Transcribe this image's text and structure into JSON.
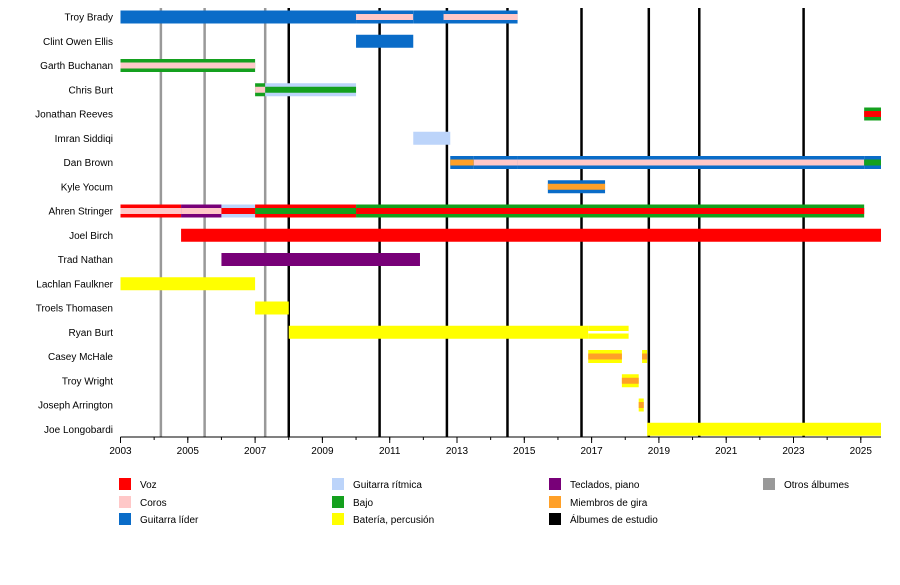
{
  "chart_data": {
    "type": "timeline",
    "title": "",
    "x_axis": {
      "start_year": 2003,
      "end_year": 2025.75,
      "tick_labels": [
        "2003",
        "2005",
        "2007",
        "2009",
        "2011",
        "2013",
        "2015",
        "2017",
        "2019",
        "2021",
        "2023",
        "2025"
      ]
    },
    "colors": {
      "voz": "#ff0000",
      "coros": "#ffc8c8",
      "guitarra_lider": "#0a6cc8",
      "guitarra_ritmica": "#bcd4fa",
      "bajo": "#14a01e",
      "bateria": "#ffff00",
      "teclados": "#780078",
      "gira": "#ffa028",
      "estudio": "#000000",
      "otros": "#999999"
    },
    "legend": [
      {
        "key": "voz",
        "label": "Voz"
      },
      {
        "key": "coros",
        "label": "Coros"
      },
      {
        "key": "guitarra_lider",
        "label": "Guitarra líder"
      },
      {
        "key": "guitarra_ritmica",
        "label": "Guitarra rítmica"
      },
      {
        "key": "bajo",
        "label": "Bajo"
      },
      {
        "key": "bateria",
        "label": "Batería, percusión"
      },
      {
        "key": "teclados",
        "label": "Teclados, piano"
      },
      {
        "key": "gira",
        "label": "Miembros de gira"
      },
      {
        "key": "estudio",
        "label": "Álbumes de estudio"
      },
      {
        "key": "otros",
        "label": "Otros álbumes"
      }
    ],
    "studio_albums": [
      2008.0,
      2010.7,
      2012.7,
      2014.5,
      2016.7,
      2018.7,
      2020.2,
      2023.3
    ],
    "other_albums": [
      2004.2,
      2005.5,
      2007.3
    ],
    "members": [
      {
        "name": "Troy Brady",
        "segments": [
          {
            "start": 2003.0,
            "end": 2010.0,
            "main": "guitarra_lider"
          },
          {
            "start": 2010.0,
            "end": 2011.7,
            "main": "guitarra_lider",
            "inner": "coros"
          },
          {
            "start": 2011.7,
            "end": 2012.6,
            "main": "guitarra_lider"
          },
          {
            "start": 2012.6,
            "end": 2014.8,
            "main": "guitarra_lider",
            "inner": "coros"
          }
        ]
      },
      {
        "name": "Clint Owen Ellis",
        "segments": [
          {
            "start": 2010.0,
            "end": 2011.7,
            "main": "guitarra_lider"
          }
        ]
      },
      {
        "name": "Garth Buchanan",
        "segments": [
          {
            "start": 2003.0,
            "end": 2007.0,
            "main": "bajo",
            "inner": "coros"
          }
        ]
      },
      {
        "name": "Chris Burt",
        "segments": [
          {
            "start": 2007.0,
            "end": 2007.3,
            "main": "bajo",
            "inner": "coros"
          },
          {
            "start": 2007.3,
            "end": 2010.0,
            "main": "guitarra_ritmica",
            "inner": "bajo"
          }
        ]
      },
      {
        "name": "Jonathan Reeves",
        "segments": [
          {
            "start": 2025.1,
            "end": 2025.6,
            "main": "bajo",
            "inner": "voz"
          }
        ]
      },
      {
        "name": "Imran Siddiqi",
        "segments": [
          {
            "start": 2011.7,
            "end": 2012.8,
            "main": "guitarra_ritmica"
          }
        ]
      },
      {
        "name": "Dan Brown",
        "segments": [
          {
            "start": 2012.8,
            "end": 2013.5,
            "main": "guitarra_lider",
            "inner": "gira"
          },
          {
            "start": 2013.5,
            "end": 2014.8,
            "main": "guitarra_lider",
            "inner": "coros"
          },
          {
            "start": 2014.8,
            "end": 2025.1,
            "main": "guitarra_lider",
            "inner": "coros"
          },
          {
            "start": 2025.1,
            "end": 2025.6,
            "main": "guitarra_lider",
            "inner": "bajo"
          }
        ]
      },
      {
        "name": "Kyle Yocum",
        "segments": [
          {
            "start": 2015.7,
            "end": 2017.4,
            "main": "guitarra_lider",
            "inner": "gira"
          }
        ]
      },
      {
        "name": "Ahren Stringer",
        "segments": [
          {
            "start": 2003.0,
            "end": 2004.8,
            "main": "voz",
            "inner": "coros"
          },
          {
            "start": 2004.8,
            "end": 2006.0,
            "main": "teclados",
            "inner": "coros"
          },
          {
            "start": 2006.0,
            "end": 2007.0,
            "main": "guitarra_ritmica",
            "inner": "voz"
          },
          {
            "start": 2007.0,
            "end": 2010.0,
            "main": "voz",
            "inner": "bajo"
          },
          {
            "start": 2010.0,
            "end": 2025.1,
            "main": "bajo",
            "inner": "voz"
          }
        ]
      },
      {
        "name": "Joel Birch",
        "segments": [
          {
            "start": 2004.8,
            "end": 2025.6,
            "main": "voz"
          }
        ]
      },
      {
        "name": "Trad Nathan",
        "segments": [
          {
            "start": 2006.0,
            "end": 2011.9,
            "main": "teclados"
          }
        ]
      },
      {
        "name": "Lachlan Faulkner",
        "segments": [
          {
            "start": 2003.0,
            "end": 2007.0,
            "main": "bateria"
          }
        ]
      },
      {
        "name": "Troels Thomasen",
        "segments": [
          {
            "start": 2007.0,
            "end": 2008.0,
            "main": "bateria"
          }
        ]
      },
      {
        "name": "Ryan Burt",
        "segments": [
          {
            "start": 2008.0,
            "end": 2016.9,
            "main": "bateria"
          },
          {
            "start": 2016.9,
            "end": 2018.1,
            "main": "bateria",
            "inner": "white_stripe"
          }
        ]
      },
      {
        "name": "Casey McHale",
        "segments": [
          {
            "start": 2016.9,
            "end": 2017.9,
            "main": "bateria",
            "inner": "gira"
          },
          {
            "start": 2018.5,
            "end": 2018.65,
            "main": "bateria",
            "inner": "gira"
          }
        ]
      },
      {
        "name": "Troy Wright",
        "segments": [
          {
            "start": 2017.9,
            "end": 2018.4,
            "main": "bateria",
            "inner": "gira"
          }
        ]
      },
      {
        "name": "Joseph Arrington",
        "segments": [
          {
            "start": 2018.4,
            "end": 2018.55,
            "main": "bateria",
            "inner": "gira"
          }
        ]
      },
      {
        "name": "Joe Longobardi",
        "segments": [
          {
            "start": 2018.65,
            "end": 2025.6,
            "main": "bateria"
          }
        ]
      }
    ]
  }
}
